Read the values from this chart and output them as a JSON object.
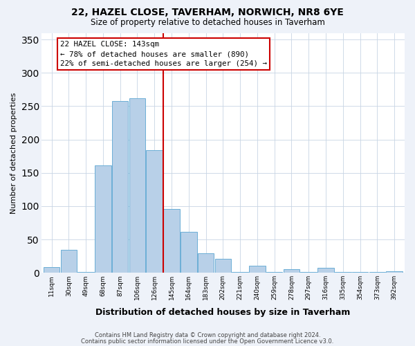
{
  "title": "22, HAZEL CLOSE, TAVERHAM, NORWICH, NR8 6YE",
  "subtitle": "Size of property relative to detached houses in Taverham",
  "xlabel": "Distribution of detached houses by size in Taverham",
  "ylabel": "Number of detached properties",
  "bar_labels": [
    "11sqm",
    "30sqm",
    "49sqm",
    "68sqm",
    "87sqm",
    "106sqm",
    "126sqm",
    "145sqm",
    "164sqm",
    "183sqm",
    "202sqm",
    "221sqm",
    "240sqm",
    "259sqm",
    "278sqm",
    "297sqm",
    "316sqm",
    "335sqm",
    "354sqm",
    "373sqm",
    "392sqm"
  ],
  "bar_values": [
    9,
    34,
    1,
    161,
    258,
    262,
    184,
    96,
    62,
    29,
    21,
    1,
    11,
    1,
    5,
    1,
    7,
    1,
    1,
    1,
    2
  ],
  "bar_color": "#b8d0e8",
  "bar_edge_color": "#6baed6",
  "vline_pos": 7,
  "vline_color": "#cc0000",
  "annotation_title": "22 HAZEL CLOSE: 143sqm",
  "annotation_line1": "← 78% of detached houses are smaller (890)",
  "annotation_line2": "22% of semi-detached houses are larger (254) →",
  "annotation_box_color": "#ffffff",
  "annotation_box_edge": "#cc0000",
  "ylim": [
    0,
    360
  ],
  "yticks": [
    0,
    50,
    100,
    150,
    200,
    250,
    300,
    350
  ],
  "footer1": "Contains HM Land Registry data © Crown copyright and database right 2024.",
  "footer2": "Contains public sector information licensed under the Open Government Licence v3.0.",
  "bg_color": "#eef2f9",
  "plot_bg_color": "#ffffff",
  "grid_color": "#c8d4e4"
}
